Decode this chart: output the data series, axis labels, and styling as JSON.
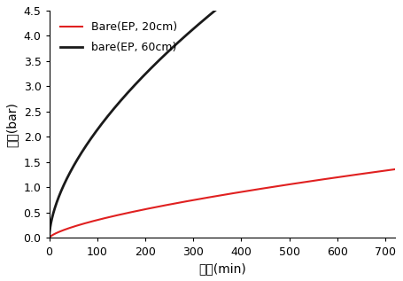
{
  "xlabel": "시간(min)",
  "ylabel": "압력(bar)",
  "xlim": [
    0,
    720
  ],
  "ylim": [
    0,
    4.5
  ],
  "xticks": [
    0,
    100,
    200,
    300,
    400,
    500,
    600,
    700
  ],
  "yticks": [
    0,
    0.5,
    1.0,
    1.5,
    2.0,
    2.5,
    3.0,
    3.5,
    4.0,
    4.5
  ],
  "series": [
    {
      "label": "Bare(EP, 20cm)",
      "color": "#e02020",
      "linewidth": 1.5,
      "power": 0.68,
      "scale": 0.0155
    },
    {
      "label": "bare(EP, 60cm)",
      "color": "#1a1a1a",
      "linewidth": 2.0,
      "power": 0.6,
      "scale": 0.135
    }
  ],
  "legend_loc": "upper left",
  "legend_fontsize": 9,
  "axis_fontsize": 10,
  "tick_fontsize": 9,
  "background_color": "#ffffff"
}
